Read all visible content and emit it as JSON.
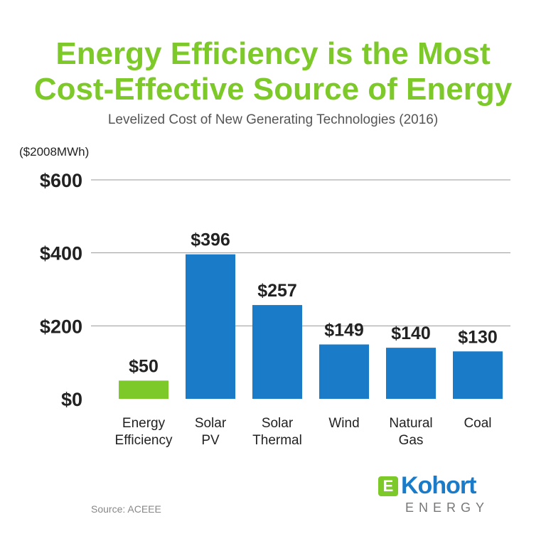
{
  "chart_data": {
    "type": "bar",
    "title": "Energy Efficiency is the Most Cost-Effective Source of Energy",
    "title_lines": [
      "Energy Efficiency is the Most",
      "Cost-Effective Source of Energy"
    ],
    "subtitle": "Levelized Cost of New Generating Technologies (2016)",
    "ylabel": "($2008MWh)",
    "ylim": [
      0,
      600
    ],
    "yticks": [
      0,
      200,
      400,
      600
    ],
    "ytick_labels": [
      "$0",
      "$200",
      "$400",
      "$600"
    ],
    "grid": true,
    "categories": [
      [
        "Energy",
        "Efficiency"
      ],
      [
        "Solar",
        "PV"
      ],
      [
        "Solar",
        "Thermal"
      ],
      [
        "Wind",
        ""
      ],
      [
        "Natural",
        "Gas"
      ],
      [
        "Coal",
        ""
      ]
    ],
    "values": [
      50,
      396,
      257,
      149,
      140,
      130
    ],
    "data_labels": [
      "$50",
      "$396",
      "$257",
      "$149",
      "$140",
      "$130"
    ],
    "colors": [
      "#7dc92a",
      "#1a7bc9",
      "#1a7bc9",
      "#1a7bc9",
      "#1a7bc9",
      "#1a7bc9"
    ]
  },
  "source": "Source: ACEEE",
  "logo": {
    "mark": "E",
    "name": "Kohort",
    "sub": "ENERGY"
  }
}
